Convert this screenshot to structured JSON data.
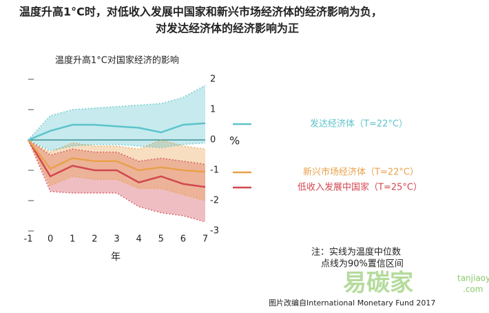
{
  "chart_data": {
    "type": "line",
    "title": "温度升高1°C时，对低收入发展中国家和新兴市场经济体的经济影响为负，",
    "title_line2": "对发达经济体的经济影响为正",
    "subtitle": "温度升高1°C对国家经济的影响",
    "x_label": "年",
    "y_label": "%",
    "x": [
      -1,
      0,
      1,
      2,
      3,
      4,
      5,
      6,
      7
    ],
    "xlim": [
      -1,
      7
    ],
    "xticks": [
      -1,
      0,
      1,
      2,
      3,
      4,
      5,
      6,
      7
    ],
    "ylim": [
      -3,
      2
    ],
    "yticks": [
      -3,
      -2,
      -1,
      0,
      1,
      2
    ],
    "series": [
      {
        "name": "低收入发展中国家（T=25°C）",
        "color": "#d2464f",
        "values": [
          0,
          -1.2,
          -0.85,
          -1.0,
          -1.0,
          -1.4,
          -1.2,
          -1.45,
          -1.55
        ],
        "lower": [
          0,
          -1.7,
          -1.75,
          -1.75,
          -1.75,
          -2.2,
          -2.4,
          -2.5,
          -2.7
        ],
        "upper": [
          0,
          -0.5,
          -0.3,
          -0.4,
          -0.4,
          -0.7,
          -0.6,
          -0.7,
          -0.8
        ]
      },
      {
        "name": "新兴市场经济体（T=22°C）",
        "color": "#e9a04a",
        "values": [
          0,
          -0.95,
          -0.6,
          -0.7,
          -0.7,
          -1.0,
          -0.9,
          -1.0,
          -1.05
        ],
        "lower": [
          0,
          -1.5,
          -1.2,
          -1.3,
          -1.3,
          -1.6,
          -1.6,
          -1.8,
          -2.0
        ],
        "upper": [
          0,
          -0.4,
          -0.1,
          -0.2,
          -0.2,
          -0.3,
          0,
          -0.2,
          -0.3
        ]
      },
      {
        "name": "发达经济体（T=22°C）",
        "color": "#5cc3cb",
        "values": [
          0,
          0.3,
          0.5,
          0.5,
          0.45,
          0.4,
          0.25,
          0.5,
          0.55
        ],
        "lower": [
          0,
          -0.35,
          -0.2,
          -0.15,
          -0.15,
          -0.2,
          -0.25,
          -0.15,
          -0.1
        ],
        "upper": [
          0,
          0.8,
          1.0,
          1.05,
          1.1,
          1.15,
          1.2,
          1.4,
          1.8
        ]
      }
    ],
    "note_line1": "注：实线为温度中位数",
    "note_line2": "点线为90%置信区间",
    "source": "图片改编自International Monetary Fund 2017",
    "watermark": "易碳家",
    "watermark_site": "tanjiaoyi",
    "watermark_domain": ".com"
  }
}
